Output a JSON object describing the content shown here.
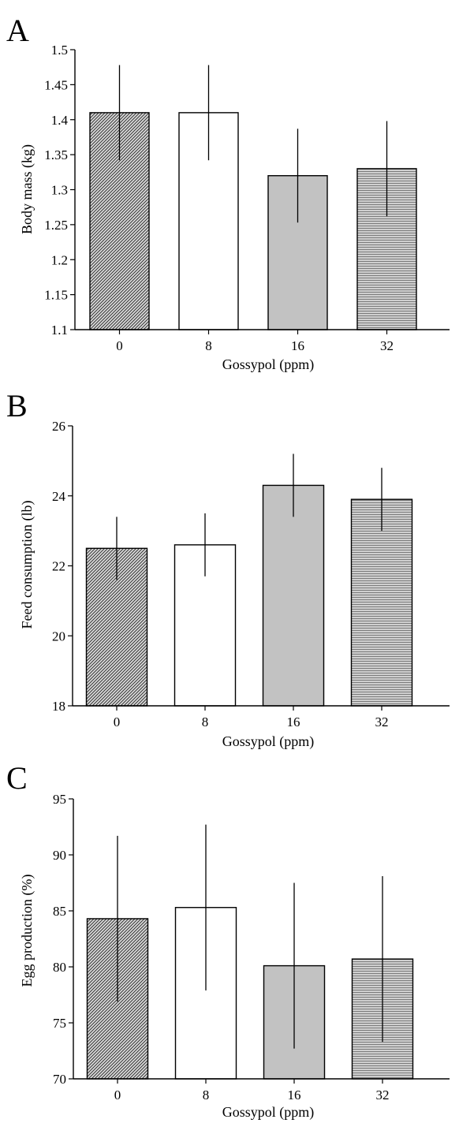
{
  "chart_data": [
    {
      "type": "bar",
      "panel_label": "A",
      "categories": [
        "0",
        "8",
        "16",
        "32"
      ],
      "values": [
        1.41,
        1.41,
        1.32,
        1.33
      ],
      "errors": [
        0.068,
        0.068,
        0.067,
        0.068
      ],
      "xlabel": "Gossypol (ppm)",
      "ylabel": "Body mass (kg)",
      "ylim": [
        1.1,
        1.5
      ],
      "yticks": [
        1.1,
        1.15,
        1.2,
        1.25,
        1.3,
        1.35,
        1.4,
        1.45,
        1.5
      ],
      "ytick_labels": [
        "1.1",
        "1.15",
        "1.2",
        "1.25",
        "1.3",
        "1.35",
        "1.4",
        "1.45",
        "1.5"
      ],
      "grid": false
    },
    {
      "type": "bar",
      "panel_label": "B",
      "categories": [
        "0",
        "8",
        "16",
        "32"
      ],
      "values": [
        22.5,
        22.6,
        24.3,
        23.9
      ],
      "errors": [
        0.9,
        0.9,
        0.9,
        0.9
      ],
      "xlabel": "Gossypol (ppm)",
      "ylabel": "Feed consumption (lb)",
      "ylim": [
        18,
        26
      ],
      "yticks": [
        18,
        20,
        22,
        24,
        26
      ],
      "ytick_labels": [
        "18",
        "20",
        "22",
        "24",
        "26"
      ],
      "grid": false
    },
    {
      "type": "bar",
      "panel_label": "C",
      "categories": [
        "0",
        "8",
        "16",
        "32"
      ],
      "values": [
        84.3,
        85.3,
        80.1,
        80.7
      ],
      "errors": [
        7.4,
        7.4,
        7.4,
        7.4
      ],
      "xlabel": "Gossypol (ppm)",
      "ylabel": "Egg production (%)",
      "ylim": [
        70,
        95
      ],
      "yticks": [
        70,
        75,
        80,
        85,
        90,
        95
      ],
      "ytick_labels": [
        "70",
        "75",
        "80",
        "85",
        "90",
        "95"
      ],
      "grid": false
    }
  ],
  "bar_styles": [
    {
      "fill": "#d6d6d6",
      "pattern": "diagonal-hatch",
      "stroke": "#000000"
    },
    {
      "fill": "#ffffff",
      "pattern": "none",
      "stroke": "#000000"
    },
    {
      "fill": "#c2c2c2",
      "pattern": "none",
      "stroke": "#000000"
    },
    {
      "fill": "#c6c6c6",
      "pattern": "horizontal-lines",
      "stroke": "#000000"
    }
  ]
}
